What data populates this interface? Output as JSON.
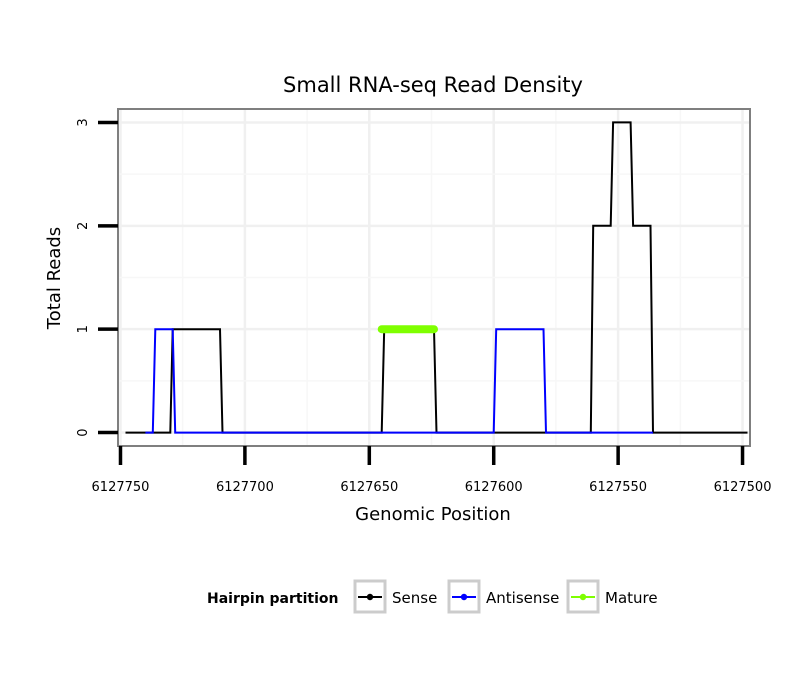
{
  "chart_data": {
    "type": "line",
    "title": "Small RNA-seq Read Density",
    "xlabel": "Genomic Position",
    "ylabel": "Total Reads",
    "x_reversed": true,
    "xlim": [
      6127751,
      6127497
    ],
    "ylim": [
      0,
      3
    ],
    "xticks": [
      6127750,
      6127700,
      6127650,
      6127600,
      6127550,
      6127500
    ],
    "xtick_labels": [
      "6127750",
      "6127700",
      "6127650",
      "6127600",
      "6127550",
      "6127500"
    ],
    "yticks": [
      0,
      1,
      2,
      3
    ],
    "ytick_labels": [
      "0",
      "1",
      "2",
      "3"
    ],
    "grid": true,
    "legend_title": "Hairpin partition",
    "legend_position": "bottom",
    "series": [
      {
        "name": "Sense",
        "color": "#000000",
        "x": [
          6127748,
          6127730,
          6127729,
          6127710,
          6127709,
          6127645,
          6127644,
          6127624,
          6127623,
          6127561,
          6127560,
          6127553,
          6127552,
          6127545,
          6127544,
          6127537,
          6127536,
          6127498
        ],
        "y": [
          0,
          0,
          1,
          1,
          0,
          0,
          1,
          1,
          0,
          0,
          2,
          2,
          3,
          3,
          2,
          2,
          0,
          0
        ]
      },
      {
        "name": "Antisense",
        "color": "#0000ff",
        "x": [
          6127740,
          6127737,
          6127736,
          6127729,
          6127728,
          6127625,
          6127624,
          6127600,
          6127599,
          6127580,
          6127579,
          6127536
        ],
        "y": [
          0,
          0,
          1,
          1,
          0,
          0,
          0,
          0,
          1,
          1,
          0,
          0
        ]
      },
      {
        "name": "Mature",
        "color": "#7fff00",
        "x": [
          6127645,
          6127624
        ],
        "y": [
          1,
          1
        ]
      }
    ]
  }
}
